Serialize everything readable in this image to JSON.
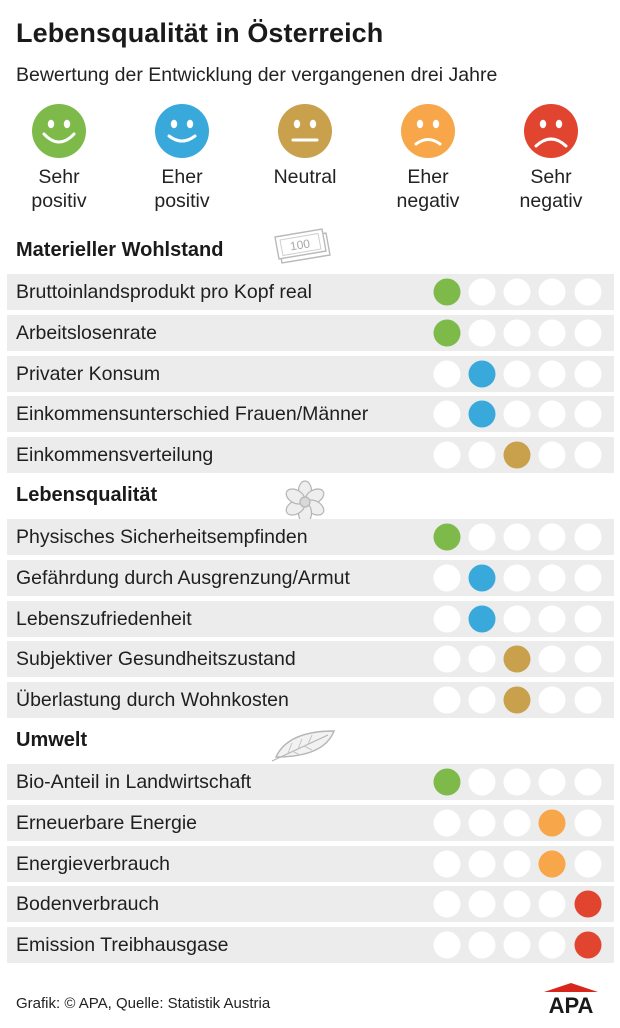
{
  "title": "Lebensqualität in Österreich",
  "subtitle": "Bewertung der Entwicklung der vergangenen drei Jahre",
  "legend": [
    {
      "line1": "Sehr",
      "line2": "positiv",
      "color": "#7dba4a",
      "mood": "big-smile"
    },
    {
      "line1": "Eher",
      "line2": "positiv",
      "color": "#39a9dc",
      "mood": "smile"
    },
    {
      "line1": "Neutral",
      "line2": "",
      "color": "#c9a04c",
      "mood": "neutral"
    },
    {
      "line1": "Eher",
      "line2": "negativ",
      "color": "#f7a64a",
      "mood": "frown"
    },
    {
      "line1": "Sehr",
      "line2": "negativ",
      "color": "#e2452f",
      "mood": "big-frown"
    }
  ],
  "chart_data": {
    "type": "table",
    "title": "Lebensqualität in Österreich",
    "subtitle": "Bewertung der Entwicklung der vergangenen drei Jahre",
    "scale": [
      "Sehr positiv",
      "Eher positiv",
      "Neutral",
      "Eher negativ",
      "Sehr negativ"
    ],
    "categories": [
      {
        "name": "Materieller Wohlstand",
        "icon": "banknote-icon",
        "items": [
          {
            "label": "Bruttoinlandsprodukt pro Kopf real",
            "rating": "Sehr positiv"
          },
          {
            "label": "Arbeitslosenrate",
            "rating": "Sehr positiv"
          },
          {
            "label": "Privater Konsum",
            "rating": "Eher positiv"
          },
          {
            "label": "Einkommensunterschied Frauen/Männer",
            "rating": "Eher positiv"
          },
          {
            "label": "Einkommensverteilung",
            "rating": "Neutral"
          }
        ]
      },
      {
        "name": "Lebensqualität",
        "icon": "flower-icon",
        "items": [
          {
            "label": "Physisches Sicherheitsempfinden",
            "rating": "Sehr positiv"
          },
          {
            "label": "Gefährdung durch Ausgrenzung/Armut",
            "rating": "Eher positiv"
          },
          {
            "label": "Lebenszufriedenheit",
            "rating": "Eher positiv"
          },
          {
            "label": "Subjektiver Gesundheitszustand",
            "rating": "Neutral"
          },
          {
            "label": "Überlastung durch Wohnkosten",
            "rating": "Neutral"
          }
        ]
      },
      {
        "name": "Umwelt",
        "icon": "leaf-icon",
        "items": [
          {
            "label": "Bio-Anteil in Landwirtschaft",
            "rating": "Sehr positiv"
          },
          {
            "label": "Erneuerbare Energie",
            "rating": "Eher negativ"
          },
          {
            "label": "Energieverbrauch",
            "rating": "Eher negativ"
          },
          {
            "label": "Bodenverbrauch",
            "rating": "Sehr negativ"
          },
          {
            "label": "Emission Treibhausgase",
            "rating": "Sehr negativ"
          }
        ]
      }
    ]
  },
  "banknote_text": "100",
  "footer": "Grafik: © APA, Quelle: Statistik Austria",
  "logo_text": "APA",
  "logo_color": "#d9261c",
  "empty_dot_color": "#ffffff"
}
